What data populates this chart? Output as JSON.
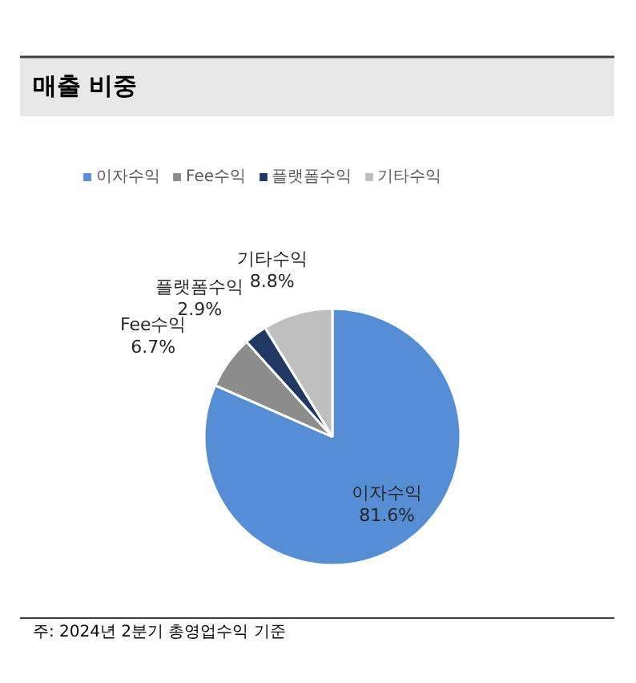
{
  "chart_data": {
    "type": "pie",
    "title": "매출 비중",
    "categories": [
      "이자수익",
      "Fee수익",
      "플랫폼수익",
      "기타수익"
    ],
    "values": [
      81.6,
      6.7,
      2.9,
      8.8
    ],
    "colors": [
      "#558ed5",
      "#8c8c8c",
      "#1f3864",
      "#bfbfbf"
    ],
    "value_labels": [
      "81.6%",
      "6.7%",
      "2.9%",
      "8.8%"
    ],
    "legend": "top",
    "annotations": [
      "주: 2024년 2분기 총영업수익 기준"
    ]
  }
}
